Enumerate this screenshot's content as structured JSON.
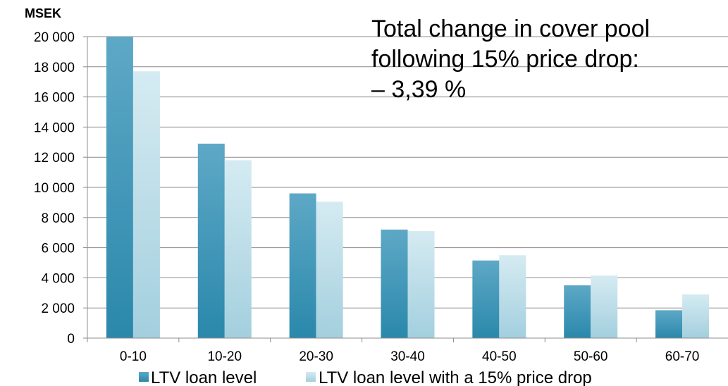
{
  "chart_data": {
    "type": "bar",
    "unit_label": "MSEK",
    "categories": [
      "0-10",
      "10-20",
      "20-30",
      "30-40",
      "40-50",
      "50-60",
      "60-70"
    ],
    "series": [
      {
        "name": "LTV loan level",
        "values": [
          20000,
          12900,
          9600,
          7200,
          5150,
          3500,
          1850
        ]
      },
      {
        "name": "LTV loan level with a 15% price drop",
        "values": [
          17700,
          11800,
          9050,
          7100,
          5500,
          4150,
          2900
        ]
      }
    ],
    "yticks": [
      "0",
      "2 000",
      "4 000",
      "6 000",
      "8 000",
      "10 000",
      "12 000",
      "14 000",
      "16 000",
      "18 000",
      "20 000"
    ],
    "ylim": [
      0,
      20000
    ],
    "grid": true,
    "legend_position": "bottom",
    "annotation_lines": [
      "Total change in cover pool",
      "following 15% price drop:",
      "– 3,39 %"
    ],
    "colors": {
      "series1_dark": "#2a88ab",
      "series1_light": "#5ea8c6",
      "series2_dark": "#a3cfde",
      "series2_light": "#d5ebf2"
    }
  }
}
